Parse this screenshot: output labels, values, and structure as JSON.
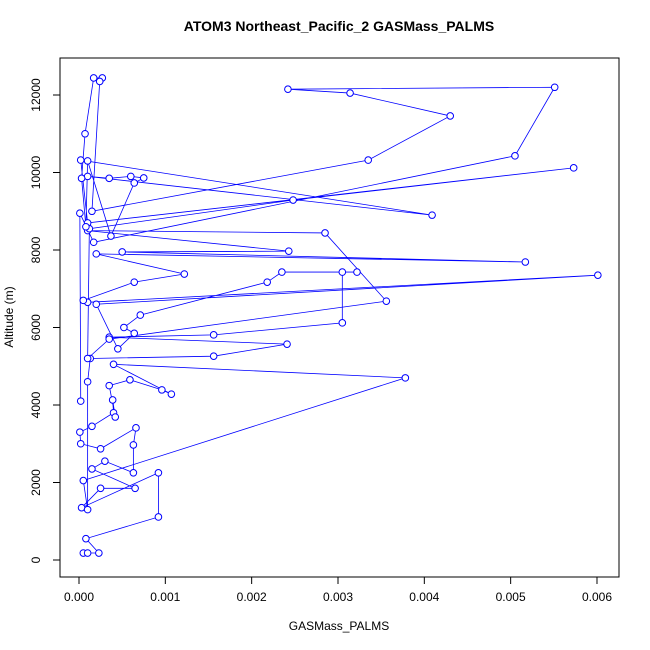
{
  "chart_data": {
    "type": "line",
    "title": "ATOM3 Northeast_Pacific_2 GASMass_PALMS",
    "x_label": "GASMass_PALMS",
    "y_label": "Altitude (m)",
    "color": "#0000ff",
    "markers": true,
    "x": [
      5e-05,
      0.0001,
      0.00023,
      8e-05,
      0.00092,
      0.00092,
      3e-05,
      0.00025,
      0.00065,
      0.00015,
      0.0003,
      0.00063,
      0.00063,
      0.00066,
      0.00025,
      2e-05,
      1e-05,
      0.00015,
      0.0004,
      0.00039,
      0.00042,
      0.00035,
      0.00059,
      0.00096,
      0.00107,
      0.0004,
      0.00378,
      5e-05,
      0.0001,
      0.0001,
      0.00013,
      0.00156,
      0.00241,
      0.00035,
      0.00156,
      0.00305,
      0.00305,
      0.00322,
      0.00235,
      0.00218,
      0.00071,
      0.00052,
      0.00064,
      0.00045,
      0.0002,
      0.00601,
      0.0001,
      5e-05,
      0.00064,
      0.00122,
      0.0002,
      0.00517,
      0.0005,
      0.00243,
      0.0001,
      0.00285,
      0.00356,
      0.00035,
      0.0001,
      0.00012,
      0.00248,
      0.00573,
      0.0001,
      2e-05,
      0.00409,
      0.0001,
      0.00035,
      0.0006,
      0.00075,
      0.00064,
      0.00037,
      0.0001,
      8e-05,
      3e-05,
      7e-05,
      0.00017,
      0.00027,
      0.00024,
      0.00015,
      0.00335,
      0.0043,
      0.00314,
      0.00242,
      0.00551,
      0.00505,
      0.00017,
      1e-05,
      2e-05
    ],
    "values": [
      180,
      180,
      180,
      550,
      1110,
      2250,
      1350,
      1850,
      1850,
      2350,
      2550,
      2250,
      2970,
      3410,
      2870,
      3000,
      3300,
      3450,
      3800,
      4130,
      3690,
      4500,
      4650,
      4390,
      4280,
      5050,
      4700,
      2050,
      1300,
      4600,
      5200,
      5260,
      5570,
      5750,
      5810,
      6120,
      7430,
      7430,
      7430,
      7170,
      6320,
      6000,
      5850,
      5450,
      6600,
      7350,
      6650,
      6700,
      7170,
      7380,
      7900,
      7690,
      7950,
      7970,
      8500,
      8440,
      6680,
      5700,
      5200,
      8550,
      9290,
      10120,
      8700,
      10320,
      8900,
      9900,
      9850,
      9900,
      9860,
      9730,
      8360,
      10300,
      8600,
      9850,
      11000,
      12440,
      12440,
      12350,
      9000,
      10320,
      11460,
      12050,
      12150,
      12200,
      10430,
      8200,
      8950,
      4100
    ],
    "xlim": [
      -0.00022,
      0.006255
    ],
    "ylim": [
      -439,
      12955
    ],
    "xticks": [
      {
        "value": 0,
        "label": "0.000"
      },
      {
        "value": 0.001,
        "label": "0.001"
      },
      {
        "value": 0.002,
        "label": "0.002"
      },
      {
        "value": 0.003,
        "label": "0.003"
      },
      {
        "value": 0.004,
        "label": "0.004"
      },
      {
        "value": 0.005,
        "label": "0.005"
      },
      {
        "value": 0.006,
        "label": "0.006"
      }
    ],
    "yticks": [
      0,
      2000,
      4000,
      6000,
      8000,
      10000,
      12000
    ]
  }
}
